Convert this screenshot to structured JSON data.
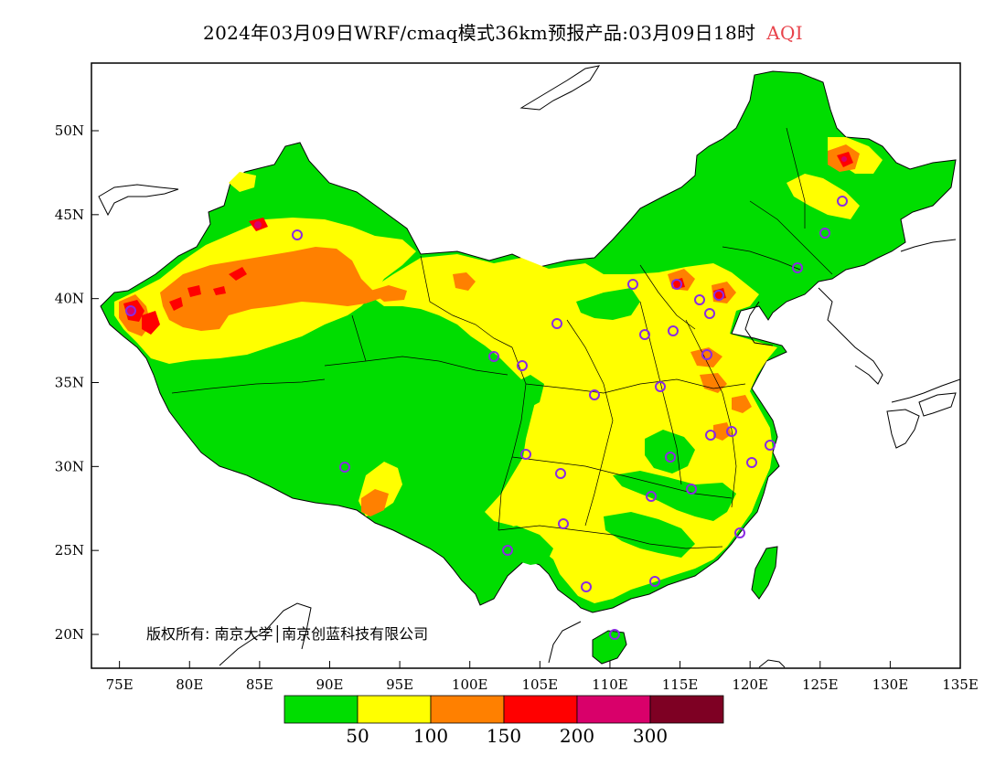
{
  "title": {
    "main": "2024年03月09日WRF/cmaq模式36km预报产品:03月09日18时",
    "variable": "AQI",
    "variable_color": "#e8434b"
  },
  "map": {
    "lon_labels": [
      "75E",
      "80E",
      "85E",
      "90E",
      "95E",
      "100E",
      "105E",
      "110E",
      "115E",
      "120E",
      "125E",
      "130E",
      "135E"
    ],
    "lat_labels": [
      "20N",
      "25N",
      "30N",
      "35N",
      "40N",
      "45N",
      "50N"
    ]
  },
  "legend": {
    "colors": [
      "#00dd00",
      "#ffff00",
      "#ff8000",
      "#ff0000",
      "#d9006a",
      "#7e0023"
    ],
    "labels": [
      "50",
      "100",
      "150",
      "200",
      "300"
    ]
  },
  "copyright": "版权所有: 南京大学│南京创蓝科技有限公司",
  "colors": {
    "good": "#00dd00",
    "moderate": "#ffff00",
    "usg": "#ff8000",
    "unhealthy": "#ff0000",
    "very_unhealthy": "#d9006a",
    "hazardous": "#7e0023",
    "station_ring": "#8a2be2"
  }
}
